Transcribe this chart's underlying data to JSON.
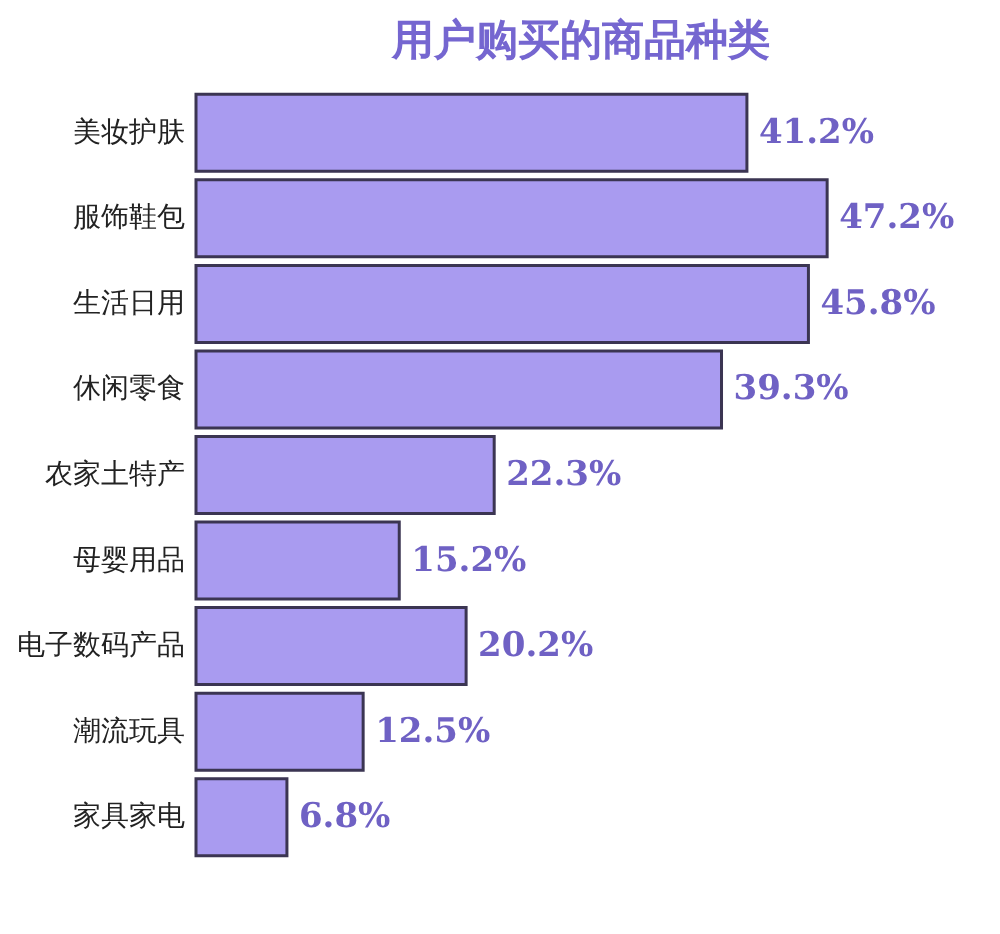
{
  "chart_data": {
    "type": "bar",
    "orientation": "horizontal",
    "title": "用户购买的商品种类",
    "categories": [
      "美妆护肤",
      "服饰鞋包",
      "生活日用",
      "休闲零食",
      "农家土特产",
      "母婴用品",
      "电子数码产品",
      "潮流玩具",
      "家具家电"
    ],
    "values": [
      41.2,
      47.2,
      45.8,
      39.3,
      22.3,
      15.2,
      20.2,
      12.5,
      6.8
    ],
    "value_labels": [
      "41.2%",
      "47.2%",
      "45.8%",
      "39.3%",
      "22.3%",
      "15.2%",
      "20.2%",
      "12.5%",
      "6.8%"
    ],
    "color": "#a99bf0"
  }
}
